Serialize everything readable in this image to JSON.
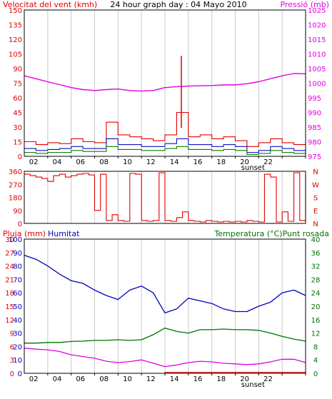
{
  "colors": {
    "wind": "#e00000",
    "gust_avg": "#1010c0",
    "wind_avg": "#008000",
    "pressure": "#e000e0",
    "humidity": "#0000c0",
    "temperature": "#007000",
    "dewpoint": "#e000e0",
    "rain": "#e00000",
    "grid": "#c8c8c8",
    "frame": "#000000"
  },
  "chart_data": [
    {
      "type": "line",
      "name_key": "wind_pressure",
      "title": "24 hour graph day : 04 Mayo 2010",
      "left_label": "Velocitat del vent (kmh)",
      "right_label": "Pressió (mb)",
      "x_ticks": [
        "02",
        "04",
        "06",
        "08",
        "10",
        "12",
        "14",
        "16",
        "18",
        "20",
        "22",
        ""
      ],
      "x_annotation": "sunset",
      "y_left_ticks": [
        0,
        15,
        30,
        45,
        60,
        75,
        90,
        105,
        120,
        135,
        150
      ],
      "y_left_range": [
        0,
        150
      ],
      "y_right_ticks": [
        975,
        980,
        985,
        990,
        995,
        1000,
        1005,
        1010,
        1015,
        1020,
        1025
      ],
      "y_right_range": [
        975,
        1025
      ],
      "hours": [
        0,
        1,
        2,
        3,
        4,
        5,
        6,
        7,
        8,
        9,
        10,
        11,
        12,
        13,
        14,
        15,
        16,
        17,
        18,
        19,
        20,
        21,
        22,
        23,
        24
      ],
      "series": [
        {
          "key": "wind",
          "axis": "left",
          "values": [
            15,
            12,
            14,
            13,
            18,
            15,
            14,
            35,
            22,
            20,
            18,
            16,
            22,
            45,
            20,
            22,
            18,
            20,
            16,
            10,
            14,
            18,
            14,
            12,
            15
          ]
        },
        {
          "key": "gust_avg",
          "axis": "left",
          "values": [
            8,
            6,
            7,
            8,
            10,
            8,
            8,
            18,
            12,
            12,
            10,
            10,
            13,
            18,
            12,
            12,
            10,
            12,
            10,
            4,
            6,
            10,
            8,
            6,
            8
          ]
        },
        {
          "key": "wind_avg",
          "axis": "left",
          "values": [
            4,
            3,
            4,
            4,
            6,
            5,
            5,
            10,
            7,
            7,
            6,
            6,
            8,
            10,
            7,
            7,
            6,
            7,
            6,
            2,
            3,
            6,
            4,
            3,
            5
          ]
        },
        {
          "key": "pressure",
          "axis": "right",
          "values": [
            1002.5,
            1001.5,
            1000.5,
            999.5,
            998.5,
            997.8,
            997.5,
            997.8,
            998,
            997.5,
            997.3,
            997.5,
            998.5,
            998.8,
            999,
            999.1,
            999.2,
            999.4,
            999.4,
            999.8,
            1000.5,
            1001.5,
            1002.5,
            1003.3,
            1003.2
          ]
        }
      ],
      "spike": {
        "hour": 13.4,
        "value": 103
      }
    },
    {
      "type": "line",
      "name_key": "wind_direction",
      "y_left_ticks": [
        0,
        90,
        180,
        270,
        360
      ],
      "y_left_range": [
        0,
        360
      ],
      "y_right_ticks": [
        "N",
        "E",
        "S",
        "W",
        "N"
      ],
      "hours": [
        0,
        0.5,
        1,
        1.5,
        2,
        2.5,
        3,
        3.5,
        4,
        4.5,
        5,
        5.5,
        6,
        6.5,
        7,
        7.5,
        8,
        8.5,
        9,
        9.5,
        10,
        10.5,
        11,
        11.5,
        12,
        12.5,
        13,
        13.5,
        14,
        14.5,
        15,
        15.5,
        16,
        16.5,
        17,
        17.5,
        18,
        18.5,
        19,
        19.5,
        20,
        20.5,
        21,
        21.5,
        22,
        22.5,
        23,
        23.5,
        24
      ],
      "series": [
        {
          "key": "wind",
          "axis": "left",
          "values": [
            340,
            330,
            320,
            310,
            290,
            330,
            340,
            320,
            330,
            340,
            345,
            335,
            90,
            340,
            20,
            60,
            20,
            15,
            345,
            340,
            20,
            15,
            20,
            350,
            20,
            15,
            40,
            80,
            20,
            15,
            10,
            20,
            15,
            10,
            15,
            10,
            15,
            10,
            20,
            15,
            10,
            340,
            320,
            10,
            80,
            15,
            350,
            20,
            340
          ]
        }
      ]
    },
    {
      "type": "line",
      "name_key": "humidity_temperature",
      "left_label_rain": "Pluja (mm)",
      "left_label_hum": "Humitat",
      "right_label": "Temperatura (°C)Punt rosada",
      "y_rain_ticks": [
        0,
        3,
        6,
        9,
        12,
        15,
        18,
        21,
        24,
        27,
        30
      ],
      "y_hum_ticks": [
        0,
        10,
        20,
        30,
        40,
        50,
        60,
        70,
        80,
        90,
        100
      ],
      "y_hum_range": [
        0,
        100
      ],
      "y_right_ticks": [
        0,
        4,
        8,
        12,
        16,
        20,
        24,
        28,
        32,
        36,
        40
      ],
      "y_right_range": [
        0,
        40
      ],
      "hours": [
        0,
        1,
        2,
        3,
        4,
        5,
        6,
        7,
        8,
        9,
        10,
        11,
        12,
        13,
        14,
        15,
        16,
        17,
        18,
        19,
        20,
        21,
        22,
        23,
        24
      ],
      "series": [
        {
          "key": "humidity",
          "axis": "hum",
          "values": [
            88,
            85,
            80,
            74,
            69,
            67,
            62,
            58,
            55,
            62,
            65,
            60,
            45,
            48,
            56,
            54,
            52,
            48,
            46,
            46,
            50,
            53,
            60,
            62,
            58
          ]
        },
        {
          "key": "temperature",
          "axis": "right",
          "values": [
            9,
            9,
            9.2,
            9.2,
            9.5,
            9.6,
            9.8,
            9.8,
            10,
            9.8,
            10,
            11.5,
            13.5,
            12.5,
            12,
            13,
            13,
            13.2,
            13,
            13,
            12.8,
            12,
            11,
            10.2,
            9.6
          ]
        },
        {
          "key": "dewpoint",
          "axis": "right",
          "values": [
            7.5,
            7.2,
            7,
            6.5,
            5.5,
            5,
            4.5,
            3.6,
            3.2,
            3.5,
            4,
            3,
            2,
            2.5,
            3.2,
            3.6,
            3.4,
            3,
            2.8,
            2.6,
            2.8,
            3.4,
            4.2,
            4.2,
            3.2
          ]
        },
        {
          "key": "rain",
          "axis": "rain",
          "values": [
            0,
            0,
            0,
            0,
            0,
            0,
            0,
            0,
            0,
            0,
            0,
            0,
            0.2,
            0.2,
            0.2,
            0.2,
            0.2,
            0.2,
            0.2,
            0.2,
            0.2,
            0.2,
            0.2,
            0.2,
            0.2
          ]
        }
      ],
      "x_ticks": [
        "02",
        "04",
        "06",
        "08",
        "10",
        "12",
        "14",
        "16",
        "18",
        "20",
        "22",
        ""
      ],
      "x_annotation": "sunset"
    }
  ]
}
